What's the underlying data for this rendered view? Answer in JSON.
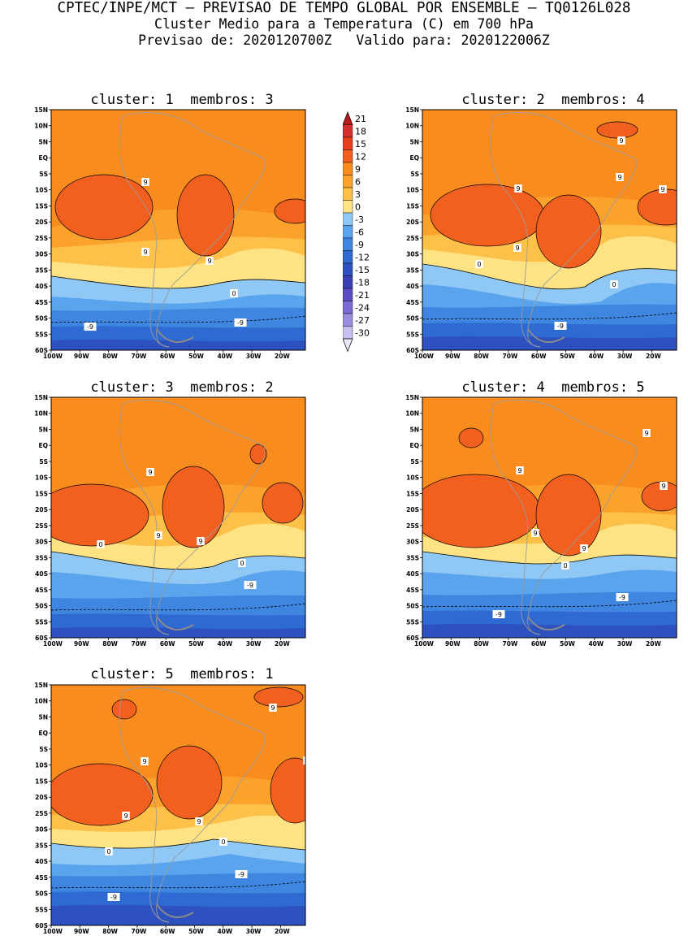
{
  "header": {
    "line1": "CPTEC/INPE/MCT – PREVISAO DE TEMPO GLOBAL POR ENSEMBLE – TQ0126L028",
    "line2": "Cluster Medio para a Temperatura (C) em 700 hPa",
    "line3": "Previsao de: 2020120700Z   Valido para: 2020122006Z"
  },
  "panels": [
    {
      "title": "cluster: 1  membros: 3"
    },
    {
      "title": "cluster: 2  membros: 4"
    },
    {
      "title": "cluster: 3  membros: 2"
    },
    {
      "title": "cluster: 4  membros: 5"
    },
    {
      "title": "cluster: 5  membros: 1"
    }
  ],
  "axes": {
    "lat_labels": [
      "15N",
      "10N",
      "5N",
      "EQ",
      "5S",
      "10S",
      "15S",
      "20S",
      "25S",
      "30S",
      "35S",
      "40S",
      "45S",
      "50S",
      "55S",
      "60S"
    ],
    "lon_labels": [
      "100W",
      "90W",
      "80W",
      "70W",
      "60W",
      "50W",
      "40W",
      "30W",
      "20W"
    ]
  },
  "colorbar": {
    "labels": [
      "21",
      "18",
      "15",
      "12",
      "9",
      "6",
      "3",
      "0",
      "-3",
      "-6",
      "-9",
      "-12",
      "-15",
      "-18",
      "-21",
      "-24",
      "-27",
      "-30"
    ],
    "colors": [
      "#b71c1c",
      "#d32f2f",
      "#e8401c",
      "#f2601f",
      "#f98c1e",
      "#fba22c",
      "#fdc048",
      "#fee384",
      "#8fc8f5",
      "#5aa4ee",
      "#3e86e0",
      "#2f6ad2",
      "#2d52c0",
      "#3a3fb6",
      "#5a4cc4",
      "#7a6bd2",
      "#9c8ce0",
      "#c7bff0",
      "#e9e6f8"
    ]
  },
  "contour_labels": {
    "nine": "9",
    "zero": "0",
    "minus_nine": "-9"
  }
}
